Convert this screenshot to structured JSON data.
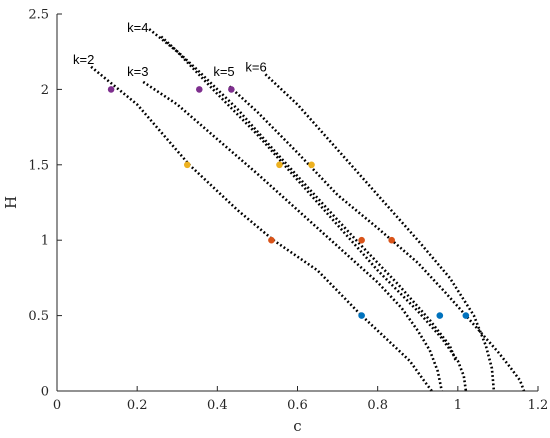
{
  "chart_data": {
    "type": "scatter",
    "title": "",
    "xlabel": "c",
    "ylabel": "H",
    "xlim": [
      0,
      1.2
    ],
    "ylim": [
      0,
      2.5
    ],
    "xticks": [
      0,
      0.2,
      0.4,
      0.6,
      0.8,
      1,
      1.2
    ],
    "xtick_labels": [
      "0",
      "0.2",
      "0.4",
      "0.6",
      "0.8",
      "1",
      "1.2"
    ],
    "yticks": [
      0,
      0.5,
      1,
      1.5,
      2,
      2.5
    ],
    "ytick_labels": [
      "0",
      "0.5",
      "1",
      "1.5",
      "2",
      "2.5"
    ],
    "grid": false,
    "curve_color": "#000000",
    "series": [
      {
        "label": "k=2",
        "label_at": [
          0.04,
          2.17
        ],
        "points": [
          [
            0.085,
            2.15
          ],
          [
            0.2,
            1.9
          ],
          [
            0.33,
            1.5
          ],
          [
            0.45,
            1.2
          ],
          [
            0.54,
            1.0
          ],
          [
            0.65,
            0.8
          ],
          [
            0.76,
            0.5
          ],
          [
            0.82,
            0.35
          ],
          [
            0.88,
            0.2
          ],
          [
            0.915,
            0.07
          ],
          [
            0.935,
            0.0
          ]
        ]
      },
      {
        "label": "k=3",
        "label_at": [
          0.175,
          2.09
        ],
        "points": [
          [
            0.215,
            2.05
          ],
          [
            0.3,
            1.9
          ],
          [
            0.4,
            1.67
          ],
          [
            0.5,
            1.44
          ],
          [
            0.6,
            1.2
          ],
          [
            0.7,
            0.96
          ],
          [
            0.8,
            0.72
          ],
          [
            0.86,
            0.55
          ],
          [
            0.9,
            0.4
          ],
          [
            0.93,
            0.27
          ],
          [
            0.95,
            0.13
          ],
          [
            0.96,
            0.0
          ]
        ]
      },
      {
        "label": "k=4",
        "label_at": [
          0.175,
          2.38
        ],
        "points": [
          [
            0.23,
            2.4
          ],
          [
            0.3,
            2.25
          ],
          [
            0.4,
            1.97
          ],
          [
            0.5,
            1.7
          ],
          [
            0.6,
            1.4
          ],
          [
            0.7,
            1.1
          ],
          [
            0.8,
            0.8
          ],
          [
            0.9,
            0.53
          ],
          [
            0.96,
            0.35
          ],
          [
            1.0,
            0.2
          ],
          [
            1.015,
            0.1
          ],
          [
            1.02,
            0.0
          ]
        ]
      },
      {
        "label": "k=5",
        "label_at": [
          0.39,
          2.09
        ],
        "points": [
          [
            0.26,
            2.35
          ],
          [
            0.35,
            2.13
          ],
          [
            0.45,
            1.87
          ],
          [
            0.55,
            1.57
          ],
          [
            0.65,
            1.28
          ],
          [
            0.75,
            0.99
          ],
          [
            0.85,
            0.71
          ],
          [
            0.93,
            0.47
          ],
          [
            0.98,
            0.3
          ],
          [
            0.995,
            0.2
          ]
        ]
      },
      {
        "label": "k=6",
        "label_at": [
          0.47,
          2.12
        ],
        "points": [
          [
            0.52,
            2.1
          ],
          [
            0.6,
            1.9
          ],
          [
            0.7,
            1.6
          ],
          [
            0.8,
            1.3
          ],
          [
            0.9,
            1.0
          ],
          [
            0.98,
            0.75
          ],
          [
            1.04,
            0.5
          ],
          [
            1.07,
            0.3
          ],
          [
            1.085,
            0.15
          ],
          [
            1.09,
            0.0
          ]
        ]
      },
      {
        "label": "",
        "label_at": null,
        "points": [
          [
            0.43,
            2.02
          ],
          [
            0.5,
            1.85
          ],
          [
            0.6,
            1.58
          ],
          [
            0.7,
            1.3
          ],
          [
            0.8,
            1.08
          ],
          [
            0.9,
            0.85
          ],
          [
            0.97,
            0.65
          ],
          [
            1.02,
            0.5
          ],
          [
            1.06,
            0.38
          ],
          [
            1.1,
            0.26
          ],
          [
            1.13,
            0.16
          ],
          [
            1.155,
            0.07
          ],
          [
            1.165,
            0.0
          ]
        ]
      }
    ],
    "markers": [
      {
        "color": "#7e2f8e",
        "points": [
          [
            0.135,
            2.0
          ],
          [
            0.355,
            2.0
          ],
          [
            0.435,
            2.0
          ]
        ]
      },
      {
        "color": "#edb120",
        "points": [
          [
            0.325,
            1.5
          ],
          [
            0.555,
            1.5
          ],
          [
            0.635,
            1.5
          ]
        ]
      },
      {
        "color": "#d95319",
        "points": [
          [
            0.535,
            1.0
          ],
          [
            0.76,
            1.0
          ],
          [
            0.835,
            1.0
          ]
        ]
      },
      {
        "color": "#0072bd",
        "points": [
          [
            0.76,
            0.5
          ],
          [
            0.955,
            0.5
          ],
          [
            1.02,
            0.5
          ]
        ]
      }
    ]
  }
}
